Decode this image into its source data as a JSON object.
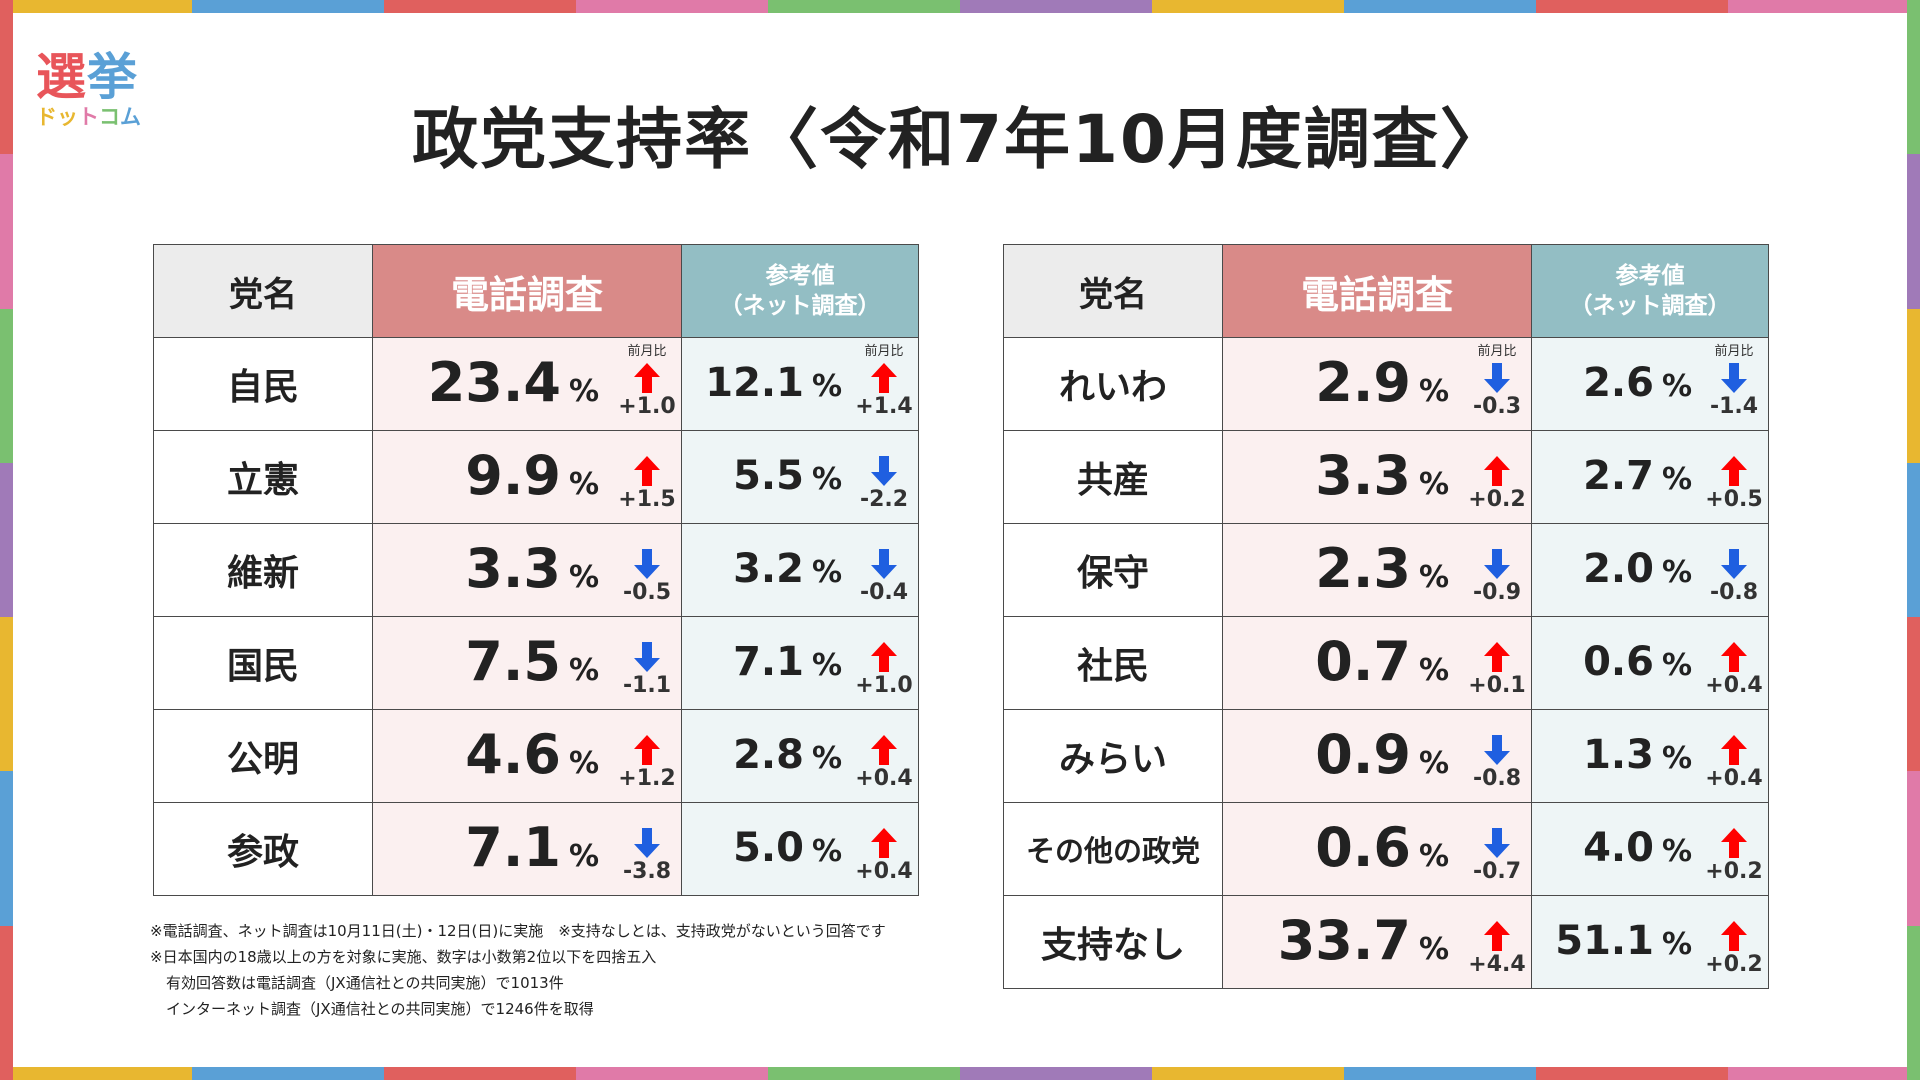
{
  "logo": {
    "main": "選挙",
    "sub": "ドットコム"
  },
  "title": "政党支持率〈令和7年10月度調査〉",
  "headers": {
    "party": "党名",
    "phone": "電話調査",
    "net_line1": "参考値",
    "net_line2": "（ネット調査）",
    "change_label": "前月比"
  },
  "colors": {
    "phone_header": "#d98a88",
    "net_header": "#93bec4",
    "up_arrow": "#ff0000",
    "down_arrow": "#1f5fe0"
  },
  "chart_data": {
    "type": "table",
    "title": "政党支持率〈令和7年10月度調査〉",
    "unit": "%",
    "columns": [
      "党名",
      "電話調査",
      "前月比",
      "参考値（ネット調査）",
      "前月比"
    ],
    "left_table": [
      {
        "party": "自民",
        "phone": "23.4",
        "phone_change": "+1.0",
        "phone_dir": "up",
        "net": "12.1",
        "net_change": "+1.4",
        "net_dir": "up",
        "show_label": true
      },
      {
        "party": "立憲",
        "phone": "9.9",
        "phone_change": "+1.5",
        "phone_dir": "up",
        "net": "5.5",
        "net_change": "-2.2",
        "net_dir": "down",
        "show_label": false
      },
      {
        "party": "維新",
        "phone": "3.3",
        "phone_change": "-0.5",
        "phone_dir": "down",
        "net": "3.2",
        "net_change": "-0.4",
        "net_dir": "down",
        "show_label": false
      },
      {
        "party": "国民",
        "phone": "7.5",
        "phone_change": "-1.1",
        "phone_dir": "down",
        "net": "7.1",
        "net_change": "+1.0",
        "net_dir": "up",
        "show_label": false
      },
      {
        "party": "公明",
        "phone": "4.6",
        "phone_change": "+1.2",
        "phone_dir": "up",
        "net": "2.8",
        "net_change": "+0.4",
        "net_dir": "up",
        "show_label": false
      },
      {
        "party": "参政",
        "phone": "7.1",
        "phone_change": "-3.8",
        "phone_dir": "down",
        "net": "5.0",
        "net_change": "+0.4",
        "net_dir": "up",
        "show_label": false
      }
    ],
    "right_table": [
      {
        "party": "れいわ",
        "phone": "2.9",
        "phone_change": "-0.3",
        "phone_dir": "down",
        "net": "2.6",
        "net_change": "-1.4",
        "net_dir": "down",
        "show_label": true
      },
      {
        "party": "共産",
        "phone": "3.3",
        "phone_change": "+0.2",
        "phone_dir": "up",
        "net": "2.7",
        "net_change": "+0.5",
        "net_dir": "up",
        "show_label": false
      },
      {
        "party": "保守",
        "phone": "2.3",
        "phone_change": "-0.9",
        "phone_dir": "down",
        "net": "2.0",
        "net_change": "-0.8",
        "net_dir": "down",
        "show_label": false
      },
      {
        "party": "社民",
        "phone": "0.7",
        "phone_change": "+0.1",
        "phone_dir": "up",
        "net": "0.6",
        "net_change": "+0.4",
        "net_dir": "up",
        "show_label": false
      },
      {
        "party": "みらい",
        "phone": "0.9",
        "phone_change": "-0.8",
        "phone_dir": "down",
        "net": "1.3",
        "net_change": "+0.4",
        "net_dir": "up",
        "show_label": false
      },
      {
        "party": "その他の政党",
        "phone": "0.6",
        "phone_change": "-0.7",
        "phone_dir": "down",
        "net": "4.0",
        "net_change": "+0.2",
        "net_dir": "up",
        "show_label": false
      },
      {
        "party": "支持なし",
        "phone": "33.7",
        "phone_change": "+4.4",
        "phone_dir": "up",
        "net": "51.1",
        "net_change": "+0.2",
        "net_dir": "up",
        "show_label": false
      }
    ]
  },
  "notes": [
    "※電話調査、ネット調査は10月11日(土)・12日(日)に実施　※支持なしとは、支持政党がないという回答です",
    "※日本国内の18歳以上の方を対象に実施、数字は小数第2位以下を四捨五入",
    "有効回答数は電話調査（JX通信社との共同実施）で1013件",
    "インターネット調査（JX通信社との共同実施）で1246件を取得"
  ]
}
